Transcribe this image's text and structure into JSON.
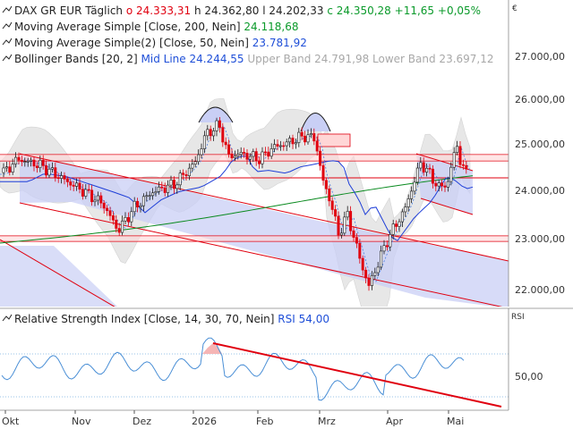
{
  "instrument": {
    "name": "DAX GR EUR",
    "period": "Täglich",
    "open": "o 24.333,31",
    "high": "h 24.362,80",
    "low": "l 24.202,33",
    "close": "c 24.350,28",
    "change": "+11,65",
    "change_pct": "+0,05%"
  },
  "indicators": {
    "ma200": {
      "label": "Moving Average Simple [Close, 200, Nein]",
      "value": "24.118,68",
      "color": "#0a8a1f"
    },
    "ma50": {
      "label": "Moving Average Simple(2) [Close, 50, Nein]",
      "value": "23.781,92",
      "color": "#1f3fd8"
    },
    "bb": {
      "label": "Bollinger Bands [20, 2]",
      "mid": "Mid Line 24.244,55",
      "upper": "Upper Band 24.791,98",
      "lower": "Lower Band 23.697,12"
    },
    "rsi": {
      "label": "Relative Strength Index [Close, 14, 30, 70, Nein]",
      "value": "RSI 54,00"
    }
  },
  "axes": {
    "currency_symbol": "€",
    "rsi_label": "RSI",
    "price_ticks": [
      "27.000,00",
      "26.000,00",
      "25.000,00",
      "24.000,00",
      "23.000,00",
      "22.000,00"
    ],
    "rsi_tick": "50,00",
    "months": [
      "Okt",
      "Nov",
      "Dez",
      "2026",
      "Feb",
      "Mrz",
      "Apr",
      "Mai"
    ]
  },
  "colors": {
    "bull": "#1a1a1a",
    "bear": "#e0000f",
    "trend": "#e0000f",
    "channel_fill": "#c9cff5",
    "bb_fill": "#d4d4d4"
  }
}
